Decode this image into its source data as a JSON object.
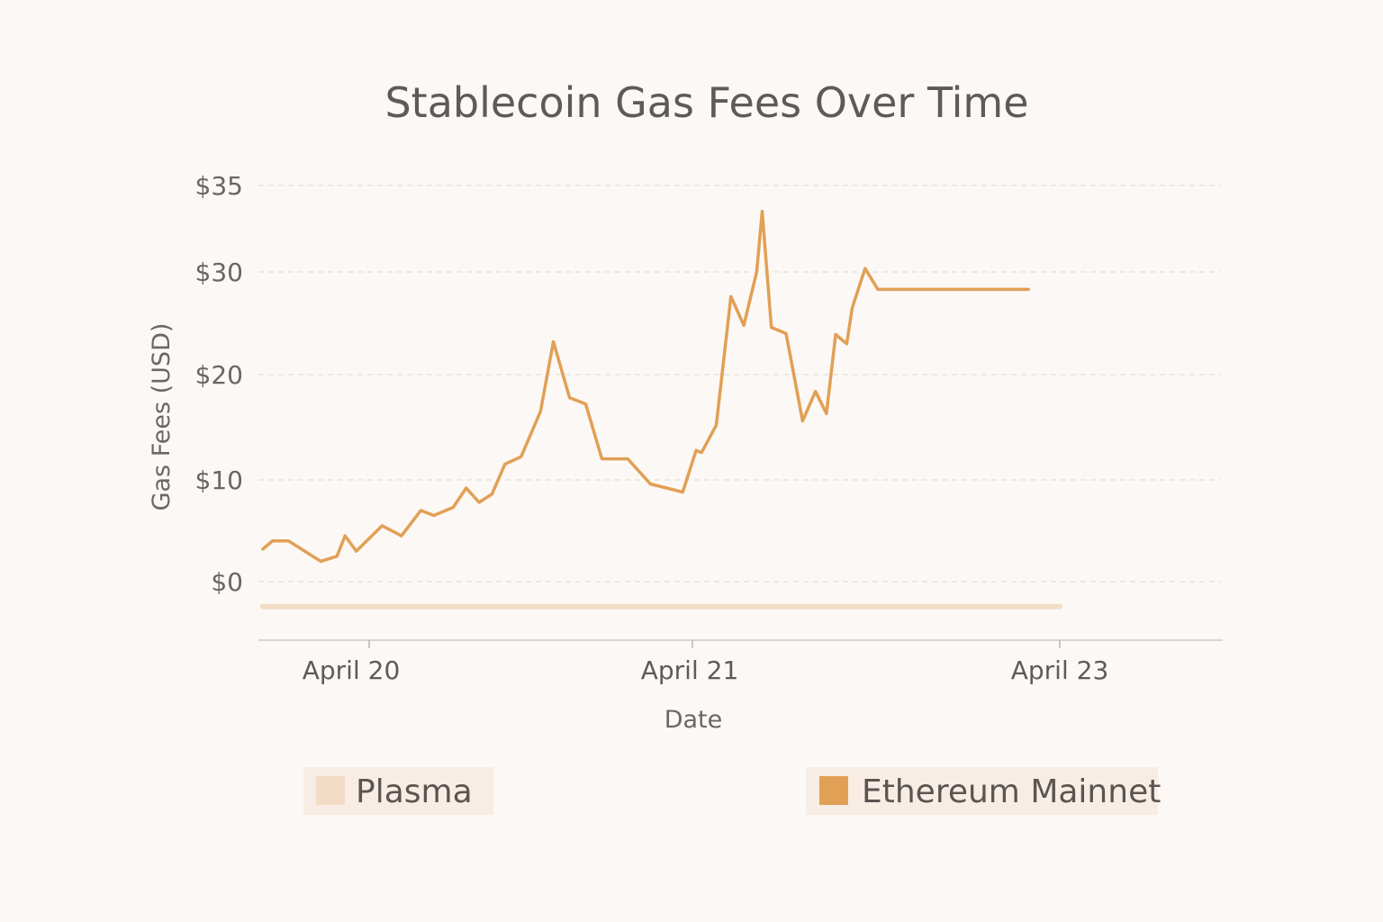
{
  "chart_data": {
    "type": "line",
    "title": "Stablecoin Gas Fees Over Time",
    "xlabel": "Date",
    "ylabel": "Gas Fees (USD)",
    "y_ticks": [
      {
        "value": 35,
        "label": "$35"
      },
      {
        "value": 30,
        "label": "$30"
      },
      {
        "value": 20,
        "label": "$20"
      },
      {
        "value": 10,
        "label": "$10"
      },
      {
        "value": 0,
        "label": "$0"
      }
    ],
    "x_ticks": [
      {
        "value": 0.0,
        "label": "April 20"
      },
      {
        "value": 1.0,
        "label": "April 21"
      },
      {
        "value": 3.0,
        "label": "April 23"
      }
    ],
    "xlim": [
      -0.33,
      3.0
    ],
    "grid": true,
    "legend_position": "bottom",
    "series": [
      {
        "name": "Plasma",
        "color": "#f3dcc5",
        "x": [
          -0.33,
          3.0
        ],
        "y": [
          -3,
          -3
        ]
      },
      {
        "name": "Ethereum Mainnet",
        "color": "#e1a055",
        "x": [
          -0.33,
          -0.3,
          -0.25,
          -0.2,
          -0.15,
          -0.1,
          -0.075,
          -0.04,
          0.04,
          0.1,
          0.16,
          0.2,
          0.26,
          0.3,
          0.34,
          0.38,
          0.42,
          0.47,
          0.53,
          0.57,
          0.62,
          0.67,
          0.72,
          0.8,
          0.87,
          0.92,
          0.97,
          1.02,
          1.05,
          1.13,
          1.21,
          1.28,
          1.35,
          1.38,
          1.43,
          1.51,
          1.6,
          1.67,
          1.73,
          1.78,
          1.84,
          1.87,
          1.94,
          2.01,
          2.1,
          2.18,
          2.25,
          2.38,
          2.48,
          2.53,
          2.62,
          2.67,
          2.73,
          2.8,
          2.83
        ],
        "y": [
          3.2,
          4,
          4,
          3,
          2,
          2.5,
          4.5,
          3,
          5.5,
          4.5,
          7,
          6.5,
          7.3,
          9.2,
          7.8,
          8.6,
          11.5,
          12.2,
          16.5,
          23.2,
          17.8,
          17.2,
          12,
          12,
          9.6,
          9.2,
          8.8,
          12.8,
          12.6,
          15.2,
          27.6,
          24.8,
          30,
          33.5,
          24.6,
          24,
          15.6,
          18.4,
          16.3,
          23.9,
          23,
          26.5,
          30.2,
          28.3,
          28.3,
          28.3,
          28.3,
          28.3,
          28.3,
          28.3,
          28.3,
          28.3,
          28.3,
          28.3,
          28.3
        ]
      }
    ]
  },
  "legend": {
    "items": [
      {
        "label": "Plasma",
        "color": "#f3dcc5"
      },
      {
        "label": "Ethereum Mainnet",
        "color": "#e1a055"
      }
    ]
  }
}
